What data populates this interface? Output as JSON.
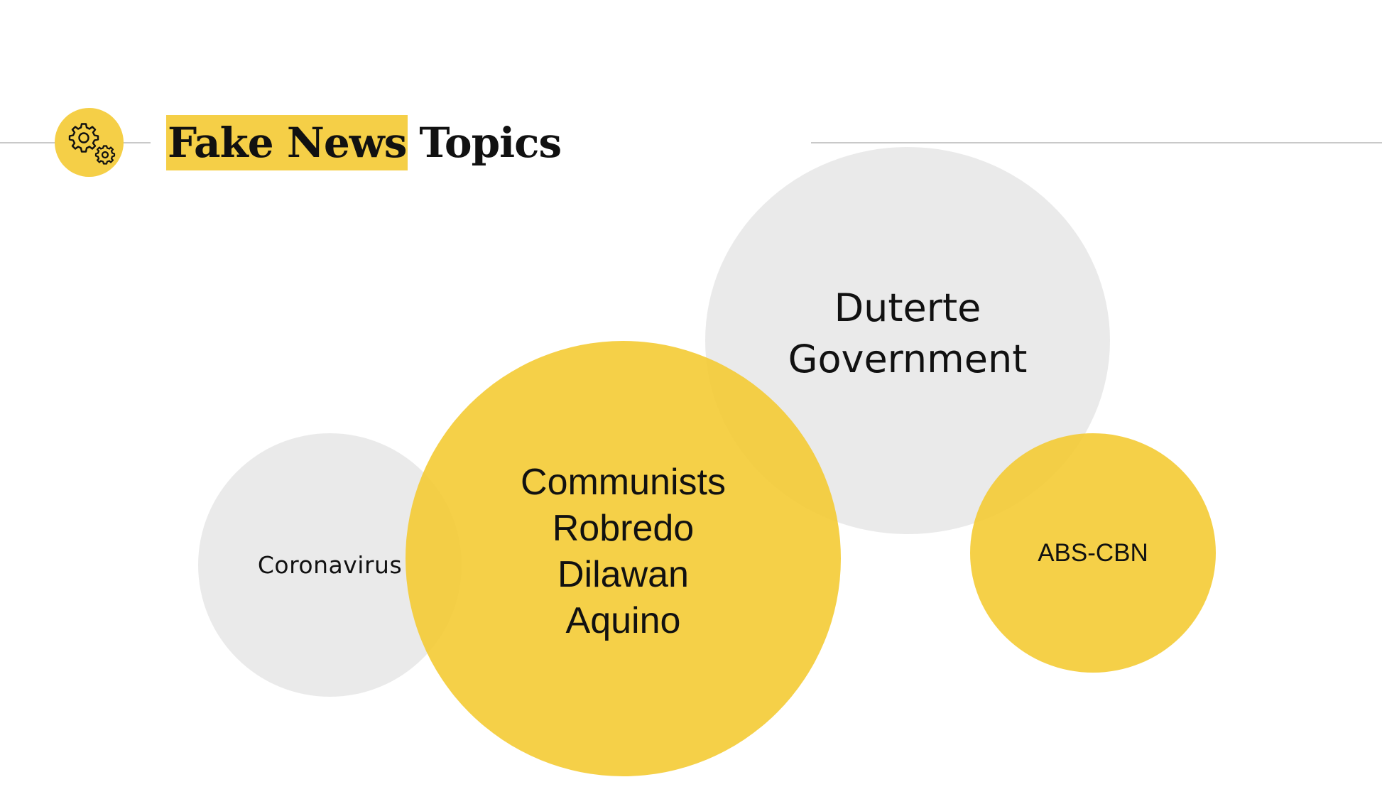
{
  "title": {
    "highlighted": "Fake News",
    "rest": "Topics"
  },
  "icon": "gears-icon",
  "colors": {
    "accent": "#f5cf47",
    "bubble_yellow": "#f4c92f",
    "bubble_gray": "#e6e6e6",
    "rule": "#c9c9c9",
    "text": "#111111"
  },
  "bubbles": [
    {
      "id": "coronavirus",
      "label": "Coronavirus",
      "color": "gray"
    },
    {
      "id": "duterte",
      "label": "Duterte\nGovernment",
      "color": "gray"
    },
    {
      "id": "communists",
      "label": "Communists\nRobredo\nDilawan\nAquino",
      "color": "yellow"
    },
    {
      "id": "abscbn",
      "label": "ABS-CBN",
      "color": "yellow"
    }
  ]
}
